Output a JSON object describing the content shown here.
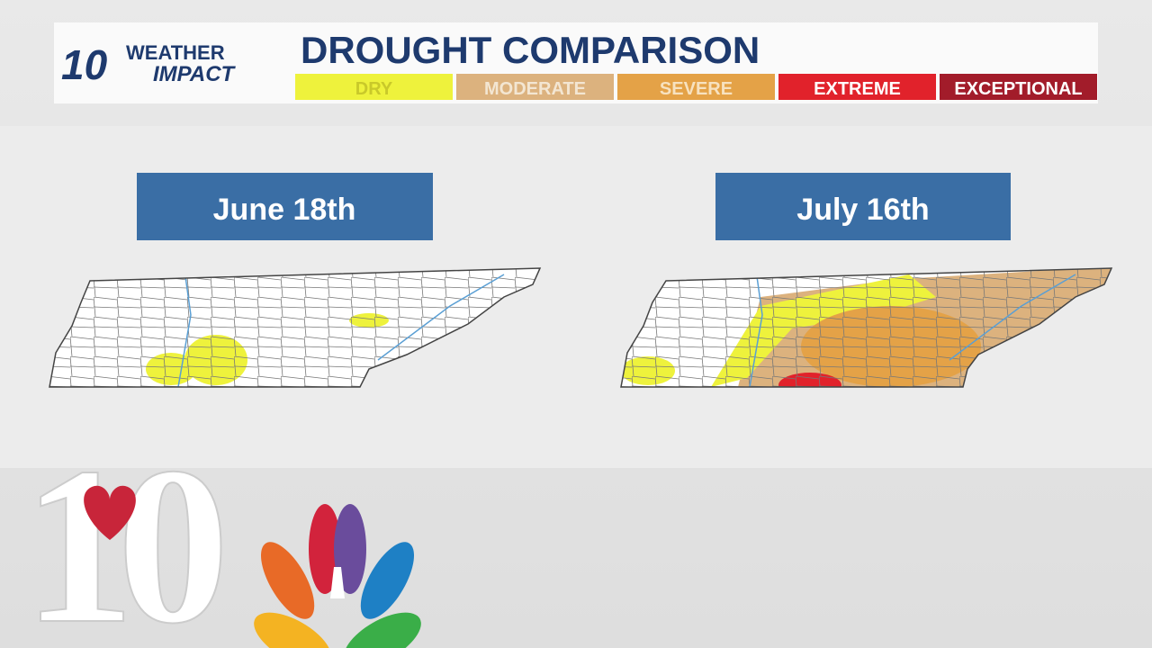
{
  "logo": {
    "number": "10",
    "line1": "WEATHER",
    "line2": "IMPACT"
  },
  "title": "DROUGHT COMPARISON",
  "legend": [
    {
      "label": "DRY",
      "color": "#eef23c",
      "text_color": "#c9c92a"
    },
    {
      "label": "MODERATE",
      "color": "#dcb27e",
      "text_color": "#f3e6d2"
    },
    {
      "label": "SEVERE",
      "color": "#e4a247",
      "text_color": "#f7e2c0"
    },
    {
      "label": "EXTREME",
      "color": "#e1222b",
      "text_color": "#ffffff"
    },
    {
      "label": "EXCEPTIONAL",
      "color": "#a21c2a",
      "text_color": "#ffffff"
    }
  ],
  "panels": [
    {
      "label": "June 18th"
    },
    {
      "label": "July 16th"
    }
  ],
  "station_logo": "10"
}
